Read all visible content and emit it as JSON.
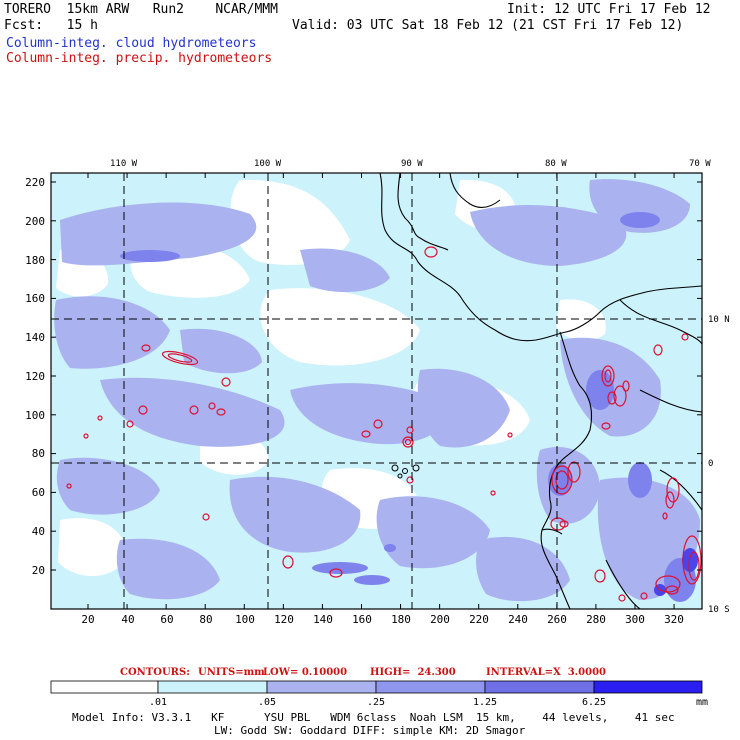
{
  "header": {
    "line1_left": "TORERO  15km ARW   Run2    NCAR/MMM",
    "line1_right": "Init: 12 UTC Fri 17 Feb 12",
    "line2_left": "Fcst:   15 h",
    "line2_right": "Valid: 03 UTC Sat 18 Feb 12 (21 CST Fri 17 Feb 12)",
    "field1": "Column-integ. cloud hydrometeors",
    "field2": "Column-integ. precip. hydrometeors"
  },
  "colors": {
    "field1_text": "#2233cc",
    "field2_text": "#cc1111",
    "fill_levels": [
      "#ffffff",
      "#ccf2fb",
      "#aab3f0",
      "#8f96ee",
      "#6f70e8",
      "#2a1ff0"
    ],
    "contour": "#dd1133",
    "coast": "#000000"
  },
  "map": {
    "top_lon_labels": [
      "110 W",
      "100 W",
      "90 W",
      "80 W",
      "70 W"
    ],
    "right_lat_labels": [
      "10 N",
      "0",
      "10 S"
    ],
    "y_ticks": [
      "220",
      "200",
      "180",
      "160",
      "140",
      "120",
      "100",
      "80",
      "60",
      "40",
      "20"
    ],
    "x_ticks": [
      "20",
      "40",
      "60",
      "80",
      "100",
      "120",
      "140",
      "160",
      "180",
      "200",
      "220",
      "240",
      "260",
      "280",
      "300",
      "320"
    ]
  },
  "contour_legend": {
    "contours": "CONTOURS:",
    "units": "UNITS=mm",
    "low": "LOW= 0.10000",
    "high": "HIGH=  24.300",
    "interval": "INTERVAL=X  3.0000"
  },
  "colorbar": {
    "labels": [
      ".01",
      ".05",
      ".25",
      "1.25",
      "6.25"
    ],
    "units": "mm"
  },
  "model_info": {
    "line1": "Model Info: V3.3.1   KF      YSU PBL   WDM 6class  Noah LSM  15 km,    44 levels,    41 sec",
    "line2": "LW: Godd SW: Goddard DIFF: simple KM: 2D Smagor"
  }
}
